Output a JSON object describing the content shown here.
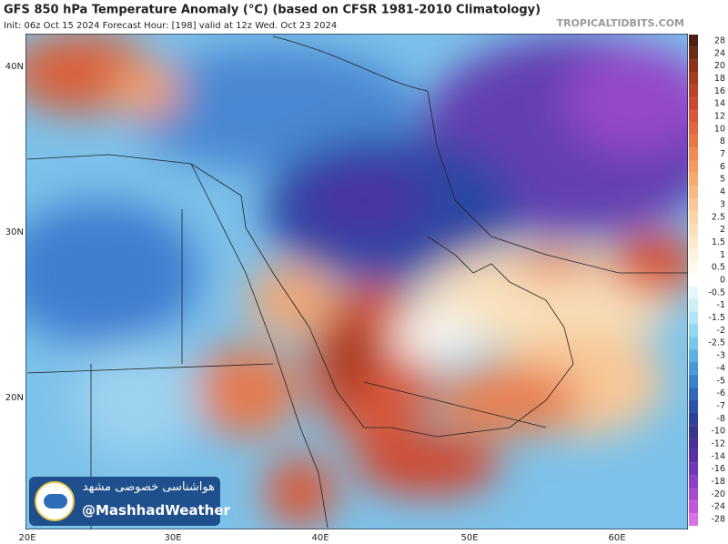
{
  "header": {
    "title": "GFS 850 hPa Temperature Anomaly (°C) (based on CFSR 1981-2010 Climatology)",
    "subtitle": "Init: 06z Oct 15 2024   Forecast Hour: [198]   valid at 12z Wed. Oct 23 2024",
    "site": "TROPICALTIDBITS.COM"
  },
  "colorbar": {
    "labels": [
      "28",
      "24",
      "20",
      "18",
      "16",
      "14",
      "12",
      "10",
      "8",
      "7",
      "6",
      "5",
      "4",
      "3",
      "2.5",
      "2",
      "1.5",
      "1",
      "0.5",
      "0",
      "-0.5",
      "-1",
      "-1.5",
      "-2",
      "-2.5",
      "-3",
      "-4",
      "-5",
      "-6",
      "-7",
      "-8",
      "-10",
      "-12",
      "-14",
      "-16",
      "-18",
      "-20",
      "-24",
      "-28"
    ]
  },
  "map": {
    "lat_labels": [
      "40N",
      "30N",
      "20N"
    ],
    "lon_labels": [
      "20E",
      "30E",
      "40E",
      "50E",
      "60E"
    ]
  },
  "watermark": {
    "persian": "هواشناسی خصوصی مشهد",
    "handle": "@MashhadWeather"
  }
}
